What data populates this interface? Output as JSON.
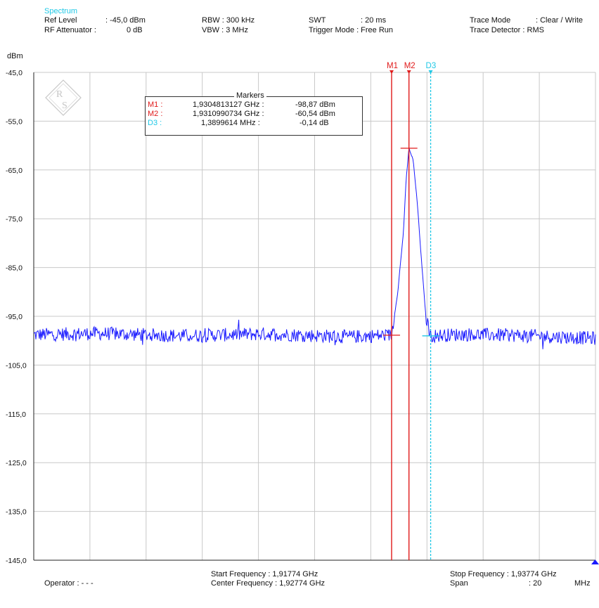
{
  "header": {
    "spectrum_label": "Spectrum",
    "ref_level_label": "Ref Level",
    "ref_level_value": ": -45,0 dBm",
    "rf_att_label": "RF Attenuator :",
    "rf_att_value": "0   dB",
    "rbw": "RBW : 300 kHz",
    "vbw": "VBW :    3 MHz",
    "swt_label": "SWT",
    "swt_value": ": 20 ms",
    "trigger": "Trigger Mode : Free Run",
    "trace_mode_label": "Trace Mode",
    "trace_mode_value": ": Clear / Write",
    "trace_det": "Trace Detector : RMS"
  },
  "marker_table": {
    "title": "Markers",
    "rows": [
      {
        "name": "M1 :",
        "freq": "1,9304813127 GHz :",
        "level": "-98,87 dBm"
      },
      {
        "name": "M2 :",
        "freq": "1,9310990734 GHz :",
        "level": "-60,54 dBm"
      },
      {
        "name": "D3 :",
        "freq": "1,3899614 MHz :",
        "level": "-0,14 dB"
      }
    ]
  },
  "footer": {
    "operator": "Operator : - - -",
    "start_freq": "Start Frequency    : 1,91774  GHz",
    "center_freq": "Center Frequency : 1,92774 GHz",
    "stop_freq": "Stop Frequency :   1,93774 GHz",
    "span_label": "Span",
    "span_value": ": 20",
    "span_unit": "MHz"
  },
  "colors": {
    "trace": "#1a1aff",
    "marker_red": "#e01a1a",
    "delta_cyan": "#1ec8e6",
    "grid": "#c8c8c8",
    "axis": "#222222"
  },
  "chart_data": {
    "type": "line",
    "ylabel": "dBm",
    "ylim": [
      -145,
      -45
    ],
    "yticks": [
      "-45,0",
      "-55,0",
      "-65,0",
      "-75,0",
      "-85,0",
      "-95,0",
      "-105,0",
      "-115,0",
      "-125,0",
      "-135,0",
      "-145,0"
    ],
    "xlim": [
      1.91774,
      1.93774
    ],
    "x_unit": "GHz",
    "grid": true,
    "noise_floor_dbm": -99,
    "series": [
      {
        "x": [
          1.91774,
          1.92,
          1.923,
          1.926,
          1.929,
          1.9302,
          1.93048,
          1.9307,
          1.9309,
          1.931,
          1.9311,
          1.93125,
          1.9314,
          1.93155,
          1.9317,
          1.93187,
          1.933,
          1.935,
          1.93774
        ],
        "values": [
          -98.8,
          -98.5,
          -99.0,
          -98.6,
          -99.2,
          -98.9,
          -98.87,
          -90.0,
          -78.0,
          -67.0,
          -60.54,
          -63.0,
          -72.0,
          -84.0,
          -95.0,
          -99.0,
          -98.7,
          -98.9,
          -99.5
        ]
      }
    ],
    "markers": [
      {
        "name": "M1",
        "x": 1.9304813127,
        "y": -98.87,
        "color": "red"
      },
      {
        "name": "M2",
        "x": 1.9310990734,
        "y": -60.54,
        "color": "red"
      },
      {
        "name": "D3",
        "x": 1.9318713,
        "y": -99.01,
        "color": "cyan",
        "delta": "1,3899614 MHz : -0,14 dB"
      }
    ]
  }
}
